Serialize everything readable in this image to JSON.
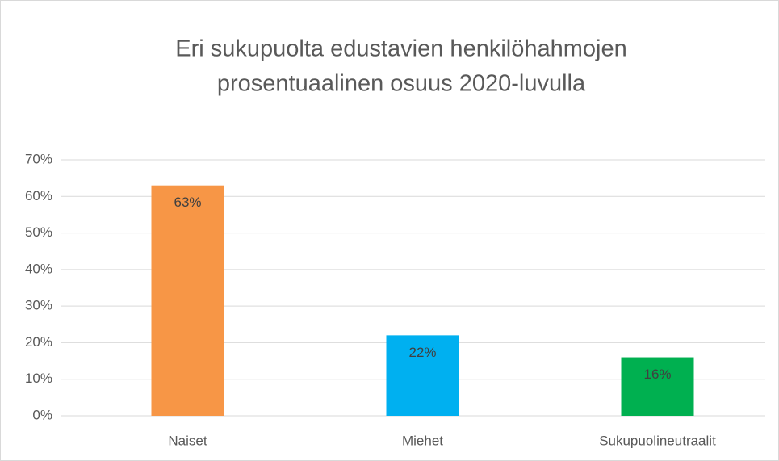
{
  "chart_data": {
    "type": "bar",
    "title": [
      "Eri sukupuolta edustavien henkilöhahmojen",
      "prosentuaalinen osuus 2020-luvulla"
    ],
    "categories": [
      "Naiset",
      "Miehet",
      "Sukupuolineutraalit"
    ],
    "values": [
      63,
      22,
      16
    ],
    "value_labels": [
      "63%",
      "22%",
      "16%"
    ],
    "colors": [
      "#f79646",
      "#00b0f0",
      "#00b050"
    ],
    "ylim": [
      0,
      70
    ],
    "yticks": [
      {
        "value": 0,
        "label": "0%"
      },
      {
        "value": 10,
        "label": "10%"
      },
      {
        "value": 20,
        "label": "20%"
      },
      {
        "value": 30,
        "label": "30%"
      },
      {
        "value": 40,
        "label": "40%"
      },
      {
        "value": 50,
        "label": "50%"
      },
      {
        "value": 60,
        "label": "60%"
      },
      {
        "value": 70,
        "label": "70%"
      }
    ],
    "grid": true
  }
}
